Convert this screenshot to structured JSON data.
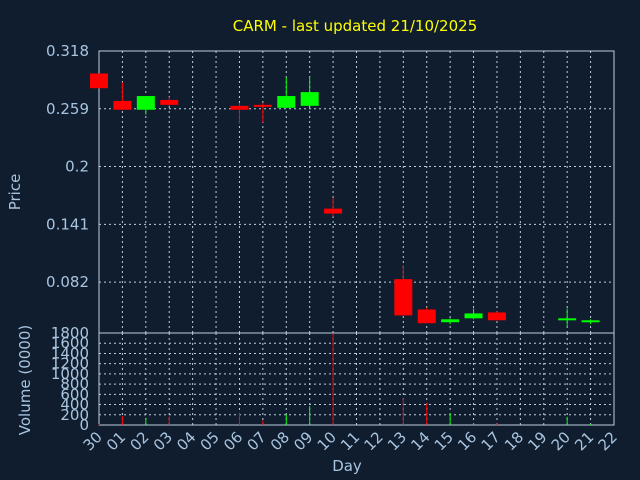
{
  "title": "CARM - last updated 21/10/2025",
  "colors": {
    "background": "#0f1d2e",
    "title": "#ffff00",
    "axis": "#a9c4df",
    "grid": "#bfcfdf",
    "up": "#00ff00",
    "down": "#ff0000"
  },
  "chart_data": [
    {
      "type": "candlestick",
      "title": "CARM - last updated 21/10/2025",
      "ylabel": "Price",
      "ylim": [
        0.03,
        0.318
      ],
      "y_ticks": [
        "0.318",
        "0.259",
        "0.2",
        "0.141",
        "0.082"
      ],
      "y_tick_values": [
        0.318,
        0.259,
        0.2,
        0.141,
        0.082
      ],
      "grid": true,
      "candles": [
        {
          "day": "30",
          "open": 0.295,
          "high": 0.295,
          "low": 0.28,
          "close": 0.28
        },
        {
          "day": "01",
          "open": 0.267,
          "high": 0.286,
          "low": 0.258,
          "close": 0.258
        },
        {
          "day": "02",
          "open": 0.258,
          "high": 0.272,
          "low": 0.253,
          "close": 0.272
        },
        {
          "day": "03",
          "open": 0.268,
          "high": 0.271,
          "low": 0.262,
          "close": 0.263
        },
        {
          "day": "06",
          "open": 0.262,
          "high": 0.265,
          "low": 0.244,
          "close": 0.258
        },
        {
          "day": "07",
          "open": 0.263,
          "high": 0.265,
          "low": 0.245,
          "close": 0.261
        },
        {
          "day": "08",
          "open": 0.26,
          "high": 0.291,
          "low": 0.26,
          "close": 0.272
        },
        {
          "day": "09",
          "open": 0.262,
          "high": 0.292,
          "low": 0.262,
          "close": 0.276
        },
        {
          "day": "10",
          "open": 0.157,
          "high": 0.168,
          "low": 0.149,
          "close": 0.152
        },
        {
          "day": "13",
          "open": 0.085,
          "high": 0.099,
          "low": 0.048,
          "close": 0.048
        },
        {
          "day": "14",
          "open": 0.054,
          "high": 0.056,
          "low": 0.04,
          "close": 0.04
        },
        {
          "day": "15",
          "open": 0.041,
          "high": 0.045,
          "low": 0.039,
          "close": 0.044
        },
        {
          "day": "16",
          "open": 0.045,
          "high": 0.055,
          "low": 0.044,
          "close": 0.05
        },
        {
          "day": "17",
          "open": 0.051,
          "high": 0.052,
          "low": 0.043,
          "close": 0.043
        },
        {
          "day": "20",
          "open": 0.044,
          "high": 0.055,
          "low": 0.037,
          "close": 0.045
        },
        {
          "day": "21",
          "open": 0.042,
          "high": 0.044,
          "low": 0.039,
          "close": 0.043
        }
      ]
    },
    {
      "type": "bar",
      "ylabel": "Volume (0000)",
      "xlabel": "Day",
      "ylim": [
        0,
        1800
      ],
      "y_ticks": [
        "1800",
        "1600",
        "1400",
        "1200",
        "1000",
        "800",
        "600",
        "400",
        "200",
        "0"
      ],
      "y_tick_values": [
        1800,
        1600,
        1400,
        1200,
        1000,
        800,
        600,
        400,
        200,
        0
      ],
      "grid": true,
      "categories": [
        "30",
        "01",
        "02",
        "03",
        "04",
        "05",
        "06",
        "07",
        "08",
        "09",
        "10",
        "11",
        "12",
        "13",
        "14",
        "15",
        "16",
        "17",
        "18",
        "19",
        "20",
        "21",
        "22"
      ],
      "volumes": [
        {
          "day": "30",
          "value": 20,
          "direction": "down"
        },
        {
          "day": "01",
          "value": 180,
          "direction": "down"
        },
        {
          "day": "02",
          "value": 140,
          "direction": "up"
        },
        {
          "day": "03",
          "value": 170,
          "direction": "down"
        },
        {
          "day": "06",
          "value": 240,
          "direction": "down"
        },
        {
          "day": "07",
          "value": 90,
          "direction": "down"
        },
        {
          "day": "08",
          "value": 200,
          "direction": "up"
        },
        {
          "day": "09",
          "value": 370,
          "direction": "up"
        },
        {
          "day": "10",
          "value": 1800,
          "direction": "down"
        },
        {
          "day": "13",
          "value": 530,
          "direction": "down"
        },
        {
          "day": "14",
          "value": 430,
          "direction": "down"
        },
        {
          "day": "15",
          "value": 230,
          "direction": "up"
        },
        {
          "day": "16",
          "value": 40,
          "direction": "up"
        },
        {
          "day": "17",
          "value": 30,
          "direction": "down"
        },
        {
          "day": "20",
          "value": 160,
          "direction": "up"
        },
        {
          "day": "21",
          "value": 20,
          "direction": "up"
        }
      ]
    }
  ]
}
